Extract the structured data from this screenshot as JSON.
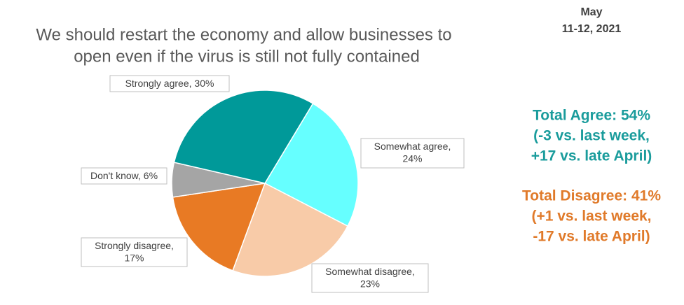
{
  "chart_data": {
    "type": "pie",
    "title": [
      "We should restart the economy and allow businesses to",
      "open even if the virus is still not fully contained"
    ],
    "categories": [
      "Somewhat agree",
      "Somewhat disagree",
      "Strongly disagree",
      "Don't know",
      "Strongly agree"
    ],
    "values": [
      24,
      23,
      17,
      6,
      30
    ],
    "value_labels": [
      "24%",
      "23%",
      "17%",
      "6%",
      "30%"
    ],
    "colors": [
      "#66ffff",
      "#f8cba8",
      "#e87a24",
      "#a5a5a5",
      "#009999"
    ],
    "date": [
      "May",
      "11-12, 2021"
    ],
    "agree_note": [
      "Total Agree:  54%",
      "(-3 vs. last week,",
      "+17 vs. late April)"
    ],
    "disagree_note": [
      "Total Disagree: 41%",
      "(+1 vs. last week,",
      "-17 vs. late April)"
    ]
  }
}
